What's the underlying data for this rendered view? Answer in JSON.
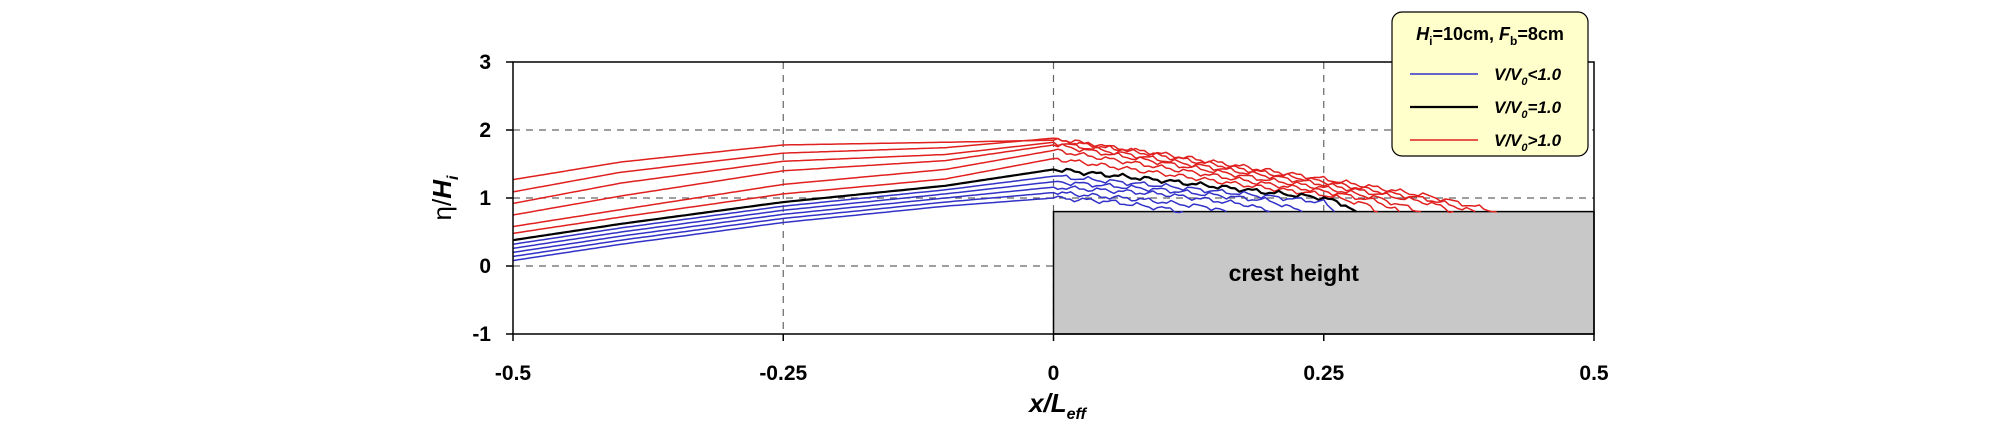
{
  "chart_data": {
    "type": "line",
    "xlabel": "x/L_eff",
    "xlabel_main": "x/L",
    "xlabel_sub": "eff",
    "ylabel_prefix": "η/",
    "ylabel_main": "H",
    "ylabel_sub": "i",
    "xlim": [
      -0.5,
      0.5
    ],
    "ylim": [
      -1,
      3
    ],
    "xticks": [
      -0.5,
      -0.25,
      0,
      0.25,
      0.5
    ],
    "xtick_labels": [
      "-0.5",
      "-0.25",
      "0",
      "0.25",
      "0.5"
    ],
    "yticks": [
      -1,
      0,
      1,
      2,
      3
    ],
    "ytick_labels": [
      "-1",
      "0",
      "1",
      "2",
      "3"
    ],
    "grid": "dashed",
    "crest": {
      "label": "crest height",
      "x_start": 0,
      "x_end": 0.5,
      "height": 0.8
    },
    "legend": {
      "position": "top-right",
      "title_parts": [
        {
          "t": "H",
          "style": "italic"
        },
        {
          "t": "i",
          "style": "sub"
        },
        {
          "t": "=10cm, ",
          "style": "normal"
        },
        {
          "t": "F",
          "style": "italic"
        },
        {
          "t": "b",
          "style": "sub"
        },
        {
          "t": "=8cm",
          "style": "normal"
        }
      ],
      "entries": [
        {
          "name": "V/V0<1.0",
          "main": "V/V",
          "sub": "0",
          "tail": "<1.0",
          "color": "#3232c8"
        },
        {
          "name": "V/V0=1.0",
          "main": "V/V",
          "sub": "0",
          "tail": "=1.0",
          "color": "#000000"
        },
        {
          "name": "V/V0>1.0",
          "main": "V/V",
          "sub": "0",
          "tail": ">1.0",
          "color": "#e0201e"
        }
      ]
    },
    "series": [
      {
        "group": "V/V0>1.0",
        "color": "#e0201e",
        "points": [
          [
            -0.5,
            1.27
          ],
          [
            -0.4,
            1.53
          ],
          [
            -0.25,
            1.78
          ],
          [
            -0.1,
            1.82
          ],
          [
            0,
            1.85
          ],
          [
            0.1,
            1.65
          ],
          [
            0.2,
            1.4
          ],
          [
            0.25,
            1.28
          ],
          [
            0.3,
            1.15
          ],
          [
            0.35,
            1.02
          ],
          [
            0.41,
            0.8
          ]
        ]
      },
      {
        "group": "V/V0>1.0",
        "color": "#e0201e",
        "points": [
          [
            -0.5,
            1.09
          ],
          [
            -0.4,
            1.38
          ],
          [
            -0.25,
            1.66
          ],
          [
            -0.1,
            1.74
          ],
          [
            0,
            1.88
          ],
          [
            0.1,
            1.62
          ],
          [
            0.2,
            1.36
          ],
          [
            0.25,
            1.24
          ],
          [
            0.3,
            1.1
          ],
          [
            0.35,
            0.97
          ],
          [
            0.39,
            0.8
          ]
        ]
      },
      {
        "group": "V/V0>1.0",
        "color": "#e0201e",
        "points": [
          [
            -0.5,
            0.92
          ],
          [
            -0.4,
            1.22
          ],
          [
            -0.25,
            1.54
          ],
          [
            -0.1,
            1.64
          ],
          [
            0,
            1.82
          ],
          [
            0.1,
            1.56
          ],
          [
            0.2,
            1.32
          ],
          [
            0.25,
            1.2
          ],
          [
            0.3,
            1.06
          ],
          [
            0.35,
            0.92
          ],
          [
            0.37,
            0.8
          ]
        ]
      },
      {
        "group": "V/V0>1.0",
        "color": "#e0201e",
        "points": [
          [
            -0.5,
            0.75
          ],
          [
            -0.4,
            1.03
          ],
          [
            -0.25,
            1.4
          ],
          [
            -0.1,
            1.55
          ],
          [
            0,
            1.78
          ],
          [
            0.1,
            1.52
          ],
          [
            0.2,
            1.26
          ],
          [
            0.25,
            1.15
          ],
          [
            0.3,
            1.0
          ],
          [
            0.34,
            0.8
          ]
        ]
      },
      {
        "group": "V/V0>1.0",
        "color": "#e0201e",
        "points": [
          [
            -0.5,
            0.58
          ],
          [
            -0.4,
            0.83
          ],
          [
            -0.25,
            1.2
          ],
          [
            -0.1,
            1.42
          ],
          [
            0,
            1.7
          ],
          [
            0.1,
            1.45
          ],
          [
            0.2,
            1.2
          ],
          [
            0.25,
            1.1
          ],
          [
            0.3,
            0.95
          ],
          [
            0.32,
            0.8
          ]
        ]
      },
      {
        "group": "V/V0>1.0",
        "color": "#e0201e",
        "points": [
          [
            -0.5,
            0.48
          ],
          [
            -0.4,
            0.72
          ],
          [
            -0.25,
            1.06
          ],
          [
            -0.1,
            1.28
          ],
          [
            0,
            1.58
          ],
          [
            0.1,
            1.36
          ],
          [
            0.2,
            1.14
          ],
          [
            0.25,
            1.05
          ],
          [
            0.29,
            0.9
          ],
          [
            0.3,
            0.8
          ]
        ]
      },
      {
        "group": "V/V0=1.0",
        "color": "#000000",
        "points": [
          [
            -0.5,
            0.38
          ],
          [
            -0.4,
            0.62
          ],
          [
            -0.25,
            0.94
          ],
          [
            -0.1,
            1.18
          ],
          [
            0,
            1.42
          ],
          [
            0.1,
            1.26
          ],
          [
            0.2,
            1.08
          ],
          [
            0.25,
            1.0
          ],
          [
            0.27,
            0.9
          ],
          [
            0.28,
            0.8
          ]
        ]
      },
      {
        "group": "V/V0<1.0",
        "color": "#3232c8",
        "points": [
          [
            -0.5,
            0.32
          ],
          [
            -0.4,
            0.56
          ],
          [
            -0.25,
            0.88
          ],
          [
            -0.1,
            1.12
          ],
          [
            0,
            1.32
          ],
          [
            0.1,
            1.18
          ],
          [
            0.2,
            1.02
          ],
          [
            0.25,
            0.94
          ],
          [
            0.26,
            0.8
          ]
        ]
      },
      {
        "group": "V/V0<1.0",
        "color": "#3232c8",
        "points": [
          [
            -0.5,
            0.26
          ],
          [
            -0.4,
            0.5
          ],
          [
            -0.25,
            0.82
          ],
          [
            -0.1,
            1.06
          ],
          [
            0,
            1.24
          ],
          [
            0.1,
            1.12
          ],
          [
            0.2,
            0.96
          ],
          [
            0.23,
            0.8
          ]
        ]
      },
      {
        "group": "V/V0<1.0",
        "color": "#3232c8",
        "points": [
          [
            -0.5,
            0.2
          ],
          [
            -0.4,
            0.44
          ],
          [
            -0.25,
            0.76
          ],
          [
            -0.1,
            1.0
          ],
          [
            0,
            1.16
          ],
          [
            0.1,
            1.06
          ],
          [
            0.18,
            0.9
          ],
          [
            0.2,
            0.8
          ]
        ]
      },
      {
        "group": "V/V0<1.0",
        "color": "#3232c8",
        "points": [
          [
            -0.5,
            0.14
          ],
          [
            -0.4,
            0.38
          ],
          [
            -0.25,
            0.7
          ],
          [
            -0.1,
            0.94
          ],
          [
            0,
            1.08
          ],
          [
            0.08,
            0.98
          ],
          [
            0.15,
            0.85
          ],
          [
            0.16,
            0.8
          ]
        ]
      },
      {
        "group": "V/V0<1.0",
        "color": "#3232c8",
        "points": [
          [
            -0.5,
            0.08
          ],
          [
            -0.4,
            0.32
          ],
          [
            -0.25,
            0.64
          ],
          [
            -0.1,
            0.88
          ],
          [
            0,
            1.0
          ],
          [
            0.05,
            0.95
          ],
          [
            0.1,
            0.85
          ],
          [
            0.12,
            0.8
          ]
        ]
      }
    ]
  }
}
